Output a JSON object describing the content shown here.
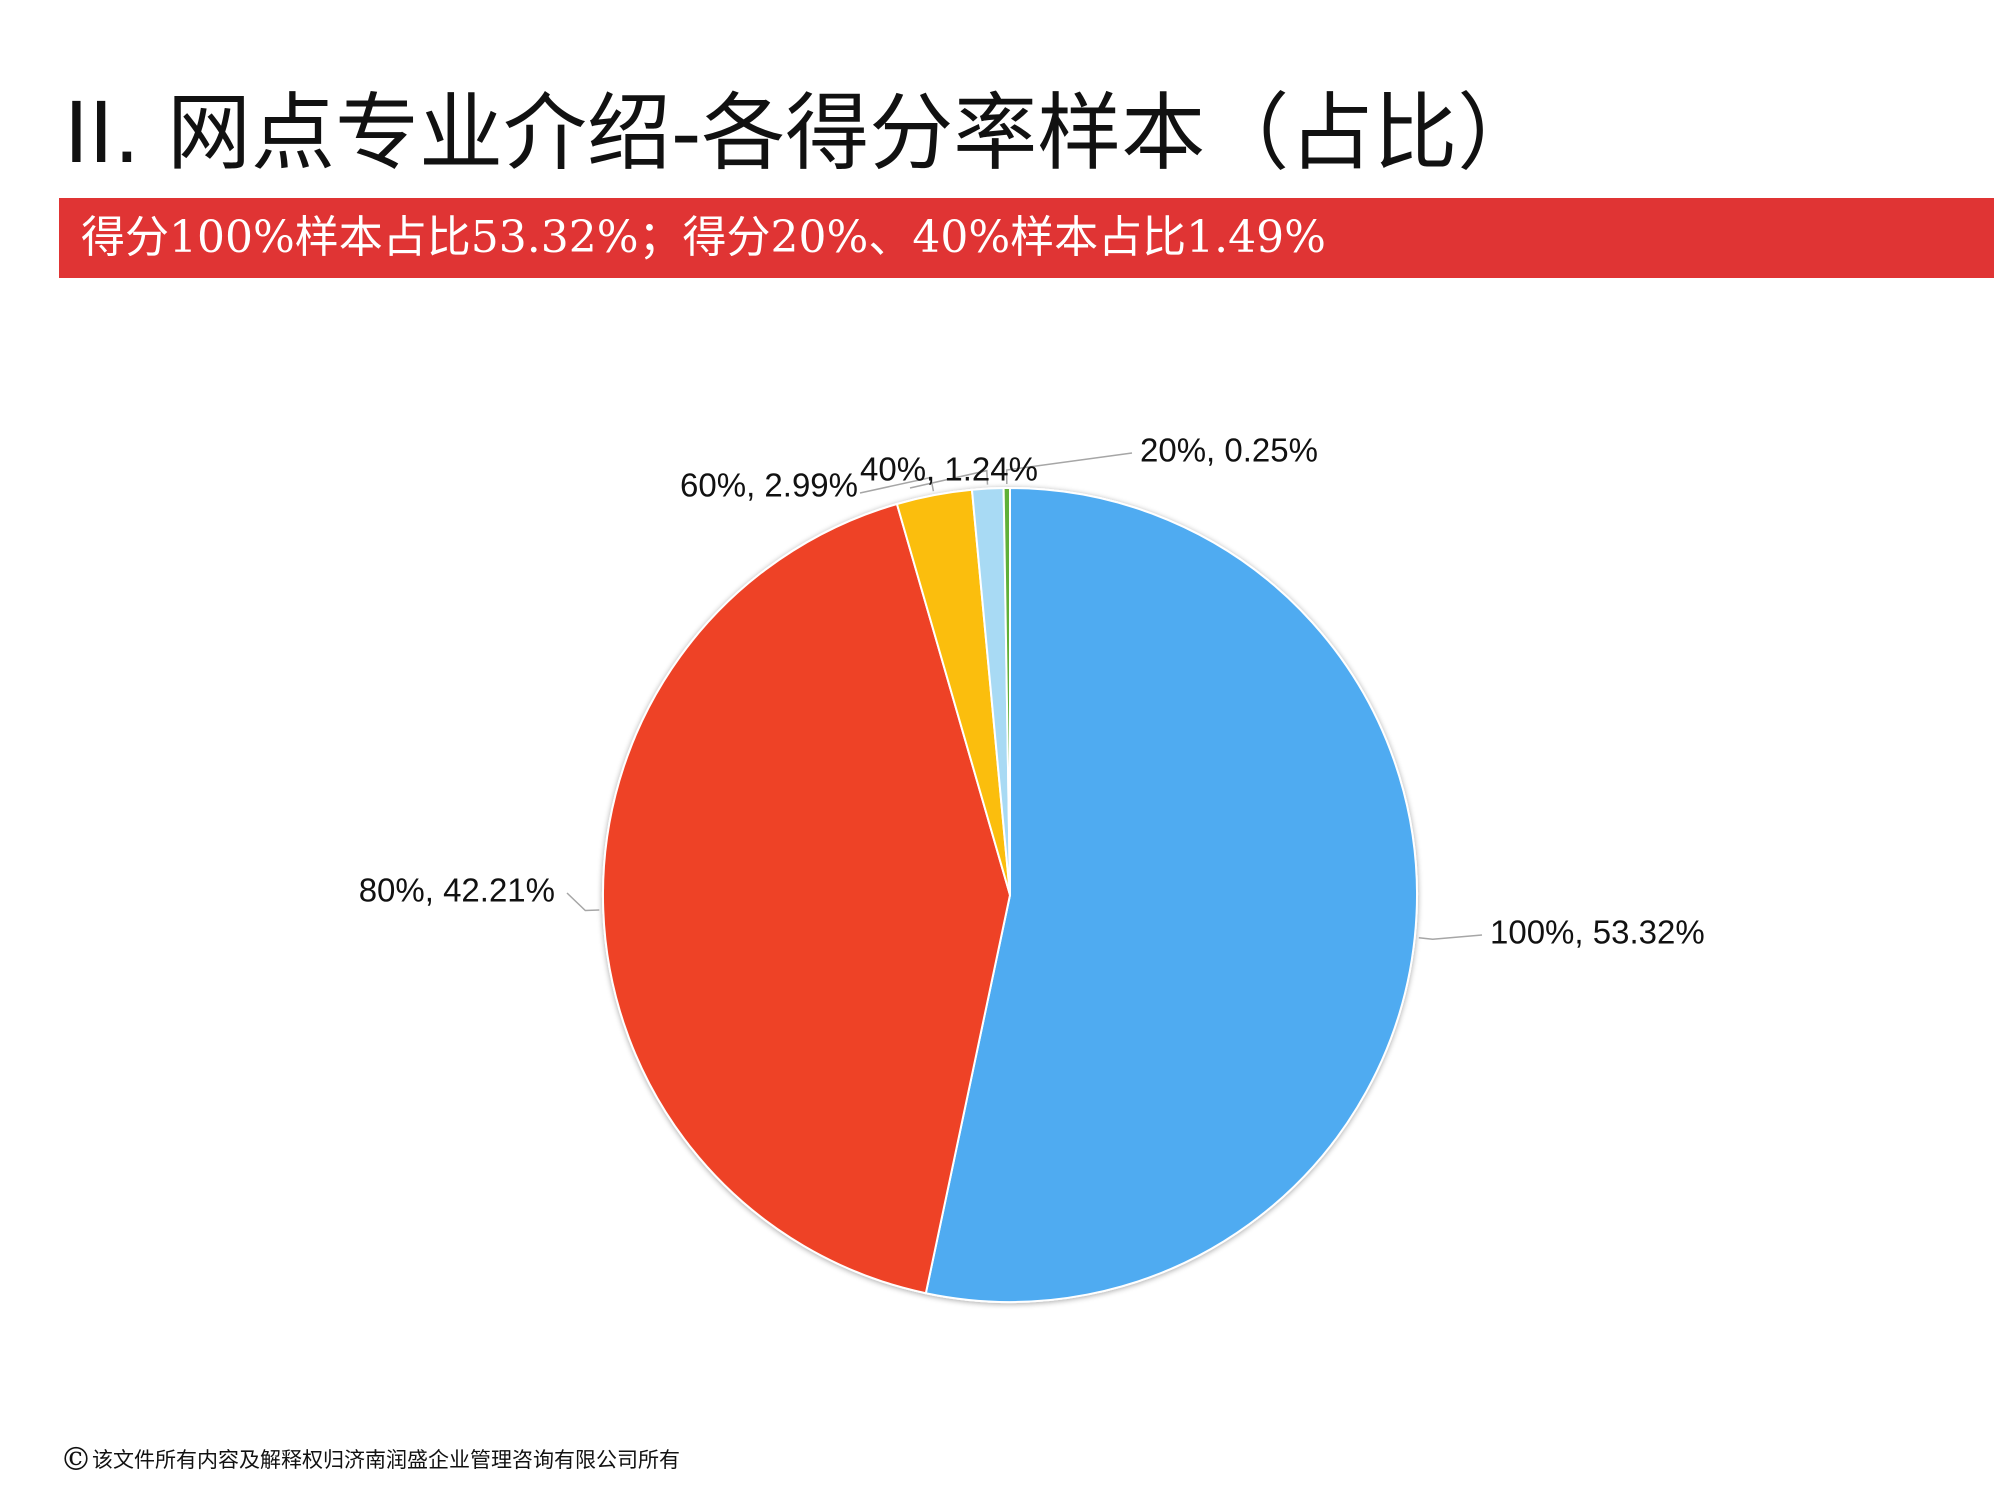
{
  "slide": {
    "title": "II.  网点专业介绍-各得分率样本（占比）",
    "banner_text": "得分100%样本占比53.32%；得分20%、40%样本占比1.49%",
    "banner_color": "#e03434",
    "footer_symbol": "©",
    "footer_text": "该文件所有内容及解释权归济南润盛企业管理咨询有限公司所有"
  },
  "chart_data": {
    "type": "pie",
    "start_angle_deg": 0,
    "direction": "clockwise",
    "slices": [
      {
        "label": "100%, 53.32%",
        "category": "100%",
        "value": 53.32,
        "color": "#4fabf1"
      },
      {
        "label": "80%, 42.21%",
        "category": "80%",
        "value": 42.21,
        "color": "#ee4226"
      },
      {
        "label": "60%, 2.99%",
        "category": "60%",
        "value": 2.99,
        "color": "#fbbe0b"
      },
      {
        "label": "40%, 1.24%",
        "category": "40%",
        "value": 1.24,
        "color": "#a8daf4"
      },
      {
        "label": "20%, 0.25%",
        "category": "20%",
        "value": 0.25,
        "color": "#5fb038"
      }
    ]
  }
}
